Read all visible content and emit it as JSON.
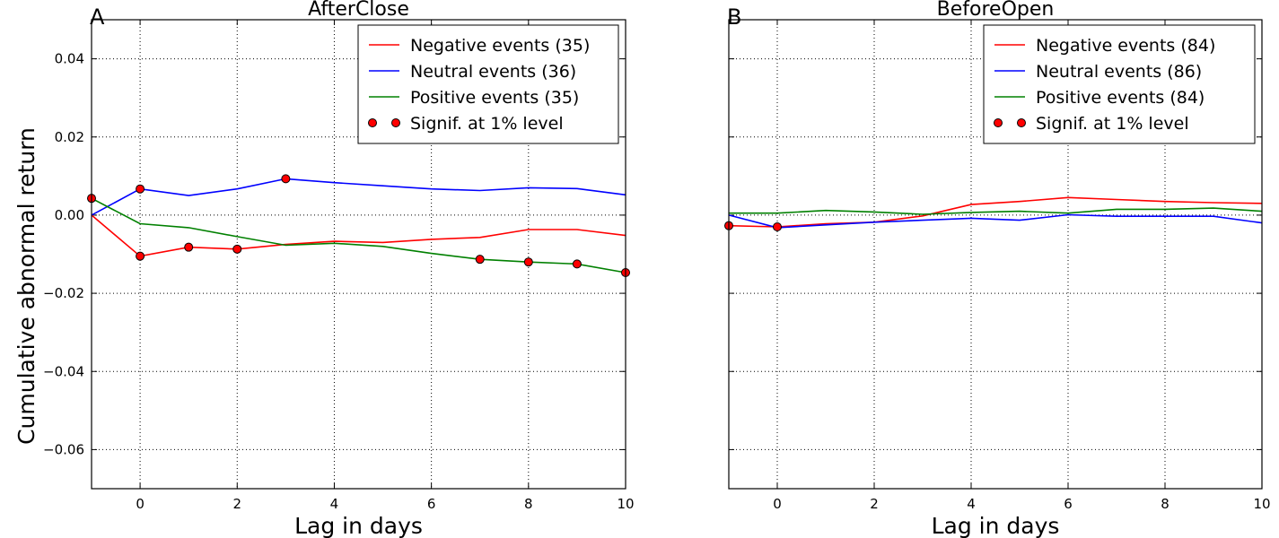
{
  "shared": {
    "ylabel": "Cumulative abnormal return",
    "ylim": [
      -0.07,
      0.05
    ],
    "yticks": [
      -0.06,
      -0.04,
      -0.02,
      0.0,
      0.02,
      0.04
    ],
    "ytick_labels": [
      "−0.06",
      "−0.04",
      "−0.02",
      "0.00",
      "0.02",
      "0.04"
    ],
    "xlim": [
      -1,
      10
    ],
    "xticks": [
      0,
      2,
      4,
      6,
      8,
      10
    ],
    "xtick_labels": [
      "0",
      "2",
      "4",
      "6",
      "8",
      "10"
    ],
    "grid": true,
    "colors": {
      "negative": "#ff0000",
      "neutral": "#0000ff",
      "positive": "#008000",
      "signif": "#ff0000"
    }
  },
  "chart_data": [
    {
      "type": "line",
      "panel_label": "A",
      "title": "AfterClose",
      "xlabel": "Lag in days",
      "legend_position": "top-right",
      "x": [
        -1,
        0,
        1,
        2,
        3,
        4,
        5,
        6,
        7,
        8,
        9,
        10
      ],
      "series": [
        {
          "name": "Negative events (35)",
          "color": "#ff0000",
          "values": [
            0.0,
            -0.0105,
            -0.0082,
            -0.0087,
            -0.0075,
            -0.0067,
            -0.007,
            -0.0062,
            -0.0057,
            -0.0037,
            -0.0037,
            -0.0052
          ]
        },
        {
          "name": "Neutral events (36)",
          "color": "#0000ff",
          "values": [
            0.0,
            0.0067,
            0.005,
            0.0067,
            0.0093,
            0.0083,
            0.0075,
            0.0067,
            0.0063,
            0.007,
            0.0068,
            0.0052
          ]
        },
        {
          "name": "Positive events (35)",
          "color": "#008000",
          "values": [
            0.0043,
            -0.0022,
            -0.0032,
            -0.0055,
            -0.0077,
            -0.0072,
            -0.008,
            -0.0098,
            -0.0113,
            -0.012,
            -0.0125,
            -0.0147
          ]
        }
      ],
      "signif_label": "Signif. at 1% level",
      "signif_points": [
        {
          "x": -1,
          "y": 0.0043
        },
        {
          "x": 0,
          "y": 0.0067
        },
        {
          "x": 0,
          "y": -0.0105
        },
        {
          "x": 1,
          "y": -0.0082
        },
        {
          "x": 2,
          "y": -0.0087
        },
        {
          "x": 3,
          "y": 0.0093
        },
        {
          "x": 7,
          "y": -0.0113
        },
        {
          "x": 8,
          "y": -0.012
        },
        {
          "x": 9,
          "y": -0.0125
        },
        {
          "x": 10,
          "y": -0.0147
        }
      ]
    },
    {
      "type": "line",
      "panel_label": "B",
      "title": "BeforeOpen",
      "xlabel": "Lag in days",
      "legend_position": "top-right",
      "x": [
        -1,
        0,
        1,
        2,
        3,
        4,
        5,
        6,
        7,
        8,
        9,
        10
      ],
      "series": [
        {
          "name": "Negative events (84)",
          "color": "#ff0000",
          "values": [
            -0.0027,
            -0.003,
            -0.0022,
            -0.0018,
            -0.0002,
            0.0027,
            0.0035,
            0.0045,
            0.004,
            0.0035,
            0.0032,
            0.003
          ]
        },
        {
          "name": "Neutral events (86)",
          "color": "#0000ff",
          "values": [
            0.0,
            -0.0032,
            -0.0025,
            -0.0018,
            -0.0013,
            -0.0008,
            -0.0013,
            0.0001,
            -0.0003,
            -0.0003,
            -0.0003,
            -0.002
          ]
        },
        {
          "name": "Positive events (84)",
          "color": "#008000",
          "values": [
            0.0005,
            0.0005,
            0.0012,
            0.0008,
            0.0002,
            0.0007,
            0.001,
            0.0005,
            0.0015,
            0.0015,
            0.0018,
            0.001
          ]
        }
      ],
      "signif_label": "Signif. at 1% level",
      "signif_points": [
        {
          "x": -1,
          "y": -0.0027
        },
        {
          "x": 0,
          "y": -0.003
        }
      ]
    }
  ]
}
